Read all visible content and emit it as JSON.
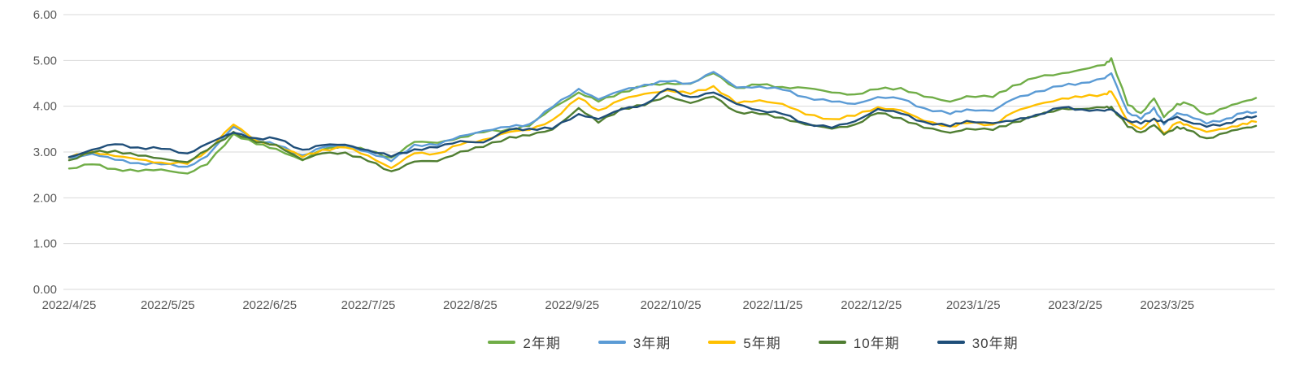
{
  "chart_data": {
    "type": "line",
    "title": "",
    "xlabel": "",
    "ylabel": "",
    "ylim": [
      0,
      6
    ],
    "grid": true,
    "legend_position": "bottom",
    "yticks": [
      "0.00",
      "1.00",
      "2.00",
      "3.00",
      "4.00",
      "5.00",
      "6.00"
    ],
    "xticks": [
      "2022/4/25",
      "2022/5/25",
      "2022/6/25",
      "2022/7/25",
      "2022/8/25",
      "2022/9/25",
      "2022/10/25",
      "2022/11/25",
      "2022/12/25",
      "2023/1/25",
      "2023/2/25",
      "2023/3/25"
    ],
    "x": [
      "2022/4/25",
      "2022/5/2",
      "2022/5/9",
      "2022/5/16",
      "2022/5/23",
      "2022/5/31",
      "2022/6/6",
      "2022/6/14",
      "2022/6/21",
      "2022/6/27",
      "2022/7/5",
      "2022/7/11",
      "2022/7/18",
      "2022/7/25",
      "2022/8/1",
      "2022/8/8",
      "2022/8/15",
      "2022/8/22",
      "2022/8/29",
      "2022/9/6",
      "2022/9/12",
      "2022/9/19",
      "2022/9/27",
      "2022/10/3",
      "2022/10/10",
      "2022/10/17",
      "2022/10/24",
      "2022/10/31",
      "2022/11/7",
      "2022/11/14",
      "2022/11/21",
      "2022/11/28",
      "2022/12/5",
      "2022/12/13",
      "2022/12/20",
      "2022/12/27",
      "2023/1/3",
      "2023/1/10",
      "2023/1/18",
      "2023/1/23",
      "2023/1/31",
      "2023/2/6",
      "2023/2/13",
      "2023/2/21",
      "2023/2/27",
      "2023/3/6",
      "2023/3/8",
      "2023/3/13",
      "2023/3/17",
      "2023/3/21",
      "2023/3/24",
      "2023/3/28",
      "2023/3/31",
      "2023/4/6",
      "2023/4/12",
      "2023/4/17",
      "2023/4/21"
    ],
    "series": [
      {
        "name": "2年期",
        "color": "#70AD47",
        "values": [
          2.64,
          2.73,
          2.63,
          2.58,
          2.62,
          2.53,
          2.73,
          3.4,
          3.17,
          3.07,
          2.82,
          3.05,
          3.15,
          3.02,
          2.88,
          3.22,
          3.2,
          3.32,
          3.43,
          3.5,
          3.57,
          3.96,
          4.3,
          4.1,
          4.31,
          4.44,
          4.5,
          4.49,
          4.72,
          4.4,
          4.47,
          4.42,
          4.4,
          4.3,
          4.26,
          4.37,
          4.4,
          4.21,
          4.1,
          4.22,
          4.2,
          4.45,
          4.62,
          4.72,
          4.8,
          4.9,
          5.05,
          4.03,
          3.85,
          4.17,
          3.76,
          4.05,
          4.06,
          3.82,
          3.97,
          4.1,
          4.18
        ]
      },
      {
        "name": "3年期",
        "color": "#5B9BD5",
        "values": [
          2.87,
          2.96,
          2.83,
          2.76,
          2.73,
          2.68,
          2.91,
          3.55,
          3.27,
          3.15,
          2.93,
          3.1,
          3.15,
          3.0,
          2.8,
          3.16,
          3.15,
          3.35,
          3.46,
          3.55,
          3.61,
          3.98,
          4.38,
          4.15,
          4.34,
          4.47,
          4.54,
          4.5,
          4.75,
          4.41,
          4.43,
          4.36,
          4.2,
          4.1,
          4.05,
          4.2,
          4.16,
          3.96,
          3.83,
          3.93,
          3.9,
          4.15,
          4.32,
          4.44,
          4.51,
          4.61,
          4.72,
          3.87,
          3.72,
          3.97,
          3.6,
          3.85,
          3.81,
          3.62,
          3.73,
          3.85,
          3.87
        ]
      },
      {
        "name": "5年期",
        "color": "#FFC000",
        "values": [
          2.88,
          3.01,
          2.91,
          2.84,
          2.77,
          2.74,
          3.03,
          3.6,
          3.24,
          3.15,
          2.89,
          3.05,
          3.1,
          2.92,
          2.65,
          2.97,
          2.97,
          3.16,
          3.27,
          3.44,
          3.48,
          3.7,
          4.18,
          3.91,
          4.14,
          4.27,
          4.35,
          4.27,
          4.44,
          4.06,
          4.13,
          4.05,
          3.82,
          3.72,
          3.79,
          3.98,
          3.91,
          3.68,
          3.56,
          3.63,
          3.6,
          3.86,
          4.03,
          4.17,
          4.2,
          4.27,
          4.32,
          3.67,
          3.5,
          3.73,
          3.41,
          3.64,
          3.6,
          3.44,
          3.51,
          3.62,
          3.66
        ]
      },
      {
        "name": "10年期",
        "color": "#507E32",
        "values": [
          2.82,
          2.99,
          3.03,
          2.92,
          2.86,
          2.78,
          3.04,
          3.44,
          3.21,
          3.16,
          2.83,
          2.97,
          2.99,
          2.8,
          2.58,
          2.79,
          2.8,
          3.01,
          3.11,
          3.33,
          3.36,
          3.49,
          3.96,
          3.64,
          3.95,
          4.02,
          4.23,
          4.07,
          4.21,
          3.88,
          3.83,
          3.75,
          3.6,
          3.51,
          3.6,
          3.85,
          3.74,
          3.53,
          3.42,
          3.51,
          3.48,
          3.65,
          3.78,
          3.95,
          3.94,
          3.97,
          3.99,
          3.55,
          3.43,
          3.59,
          3.38,
          3.55,
          3.48,
          3.3,
          3.42,
          3.52,
          3.57
        ]
      },
      {
        "name": "30年期",
        "color": "#1F4E79",
        "values": [
          2.89,
          3.05,
          3.17,
          3.1,
          3.07,
          2.97,
          3.18,
          3.42,
          3.3,
          3.29,
          3.05,
          3.15,
          3.16,
          3.04,
          2.9,
          3.06,
          3.1,
          3.24,
          3.21,
          3.49,
          3.51,
          3.51,
          3.83,
          3.72,
          3.93,
          4.04,
          4.38,
          4.2,
          4.3,
          4.05,
          3.91,
          3.83,
          3.63,
          3.53,
          3.67,
          3.94,
          3.84,
          3.66,
          3.56,
          3.68,
          3.63,
          3.68,
          3.81,
          3.97,
          3.93,
          3.9,
          3.93,
          3.69,
          3.62,
          3.73,
          3.64,
          3.77,
          3.67,
          3.55,
          3.63,
          3.73,
          3.78
        ]
      }
    ],
    "colors": {
      "gridline": "#D9D9D9",
      "axis_text": "#595959"
    }
  }
}
